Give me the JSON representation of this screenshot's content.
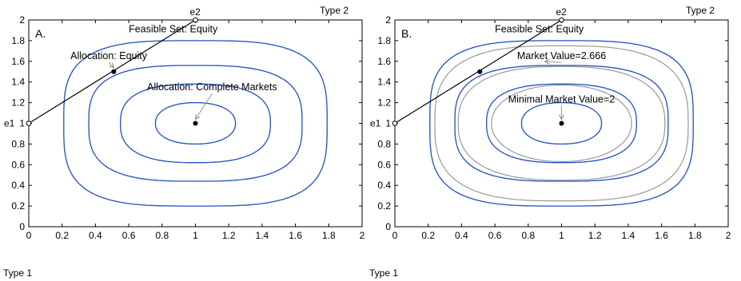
{
  "chart_data": [
    {
      "type": "line",
      "panel_label": "A.",
      "xlabel": "Type 1",
      "ylabel": "Type 2",
      "xlim": [
        0,
        2
      ],
      "ylim": [
        0,
        2
      ],
      "x_ticks": [
        "0",
        "0.2",
        "0.4",
        "0.6",
        "0.8",
        "1",
        "1.2",
        "1.4",
        "1.6",
        "1.8",
        "2"
      ],
      "y_ticks": [
        "0",
        "0.2",
        "0.4",
        "0.6",
        "0.8",
        "1",
        "1.2",
        "1.4",
        "1.6",
        "1.8",
        "2"
      ],
      "grid": false,
      "endowment_labels": [
        "e1",
        "e2"
      ],
      "feasible_set": {
        "label": "Feasible Set: Equity",
        "from": [
          0,
          1
        ],
        "to": [
          1,
          2
        ],
        "color": "#000000"
      },
      "indifference_curves": {
        "color": "#1f4fbf",
        "center": [
          1,
          1
        ],
        "half_widths": [
          0.24,
          0.45,
          0.64,
          0.79
        ],
        "half_heights": [
          0.2,
          0.38,
          0.56,
          0.8
        ],
        "exponents": [
          2.2,
          2.6,
          3.0,
          3.4
        ]
      },
      "points": [
        {
          "name": "allocation-equity",
          "x": 0.51,
          "y": 1.5
        },
        {
          "name": "allocation-complete-markets",
          "x": 1.0,
          "y": 1.0
        }
      ],
      "annotations": [
        {
          "text": "Allocation: Equity",
          "x": 0.51,
          "y": 1.5,
          "text_x": 0.48,
          "text_y": 1.62
        },
        {
          "text": "Allocation: Complete Markets",
          "x": 1.0,
          "y": 1.0,
          "text_x": 1.1,
          "text_y": 1.32
        }
      ]
    },
    {
      "type": "line",
      "panel_label": "B.",
      "xlabel": "Type 1",
      "ylabel": "Type 2",
      "xlim": [
        0,
        2
      ],
      "ylim": [
        0,
        2
      ],
      "x_ticks": [
        "0",
        "0.2",
        "0.4",
        "0.6",
        "0.8",
        "1",
        "1.2",
        "1.4",
        "1.6",
        "1.8",
        "2"
      ],
      "y_ticks": [
        "0",
        "0.2",
        "0.4",
        "0.6",
        "0.8",
        "1",
        "1.2",
        "1.4",
        "1.6",
        "1.8",
        "2"
      ],
      "grid": false,
      "endowment_labels": [
        "e1",
        "e2"
      ],
      "feasible_set": {
        "label": "Feasible Set: Equity",
        "from": [
          0,
          1
        ],
        "to": [
          1,
          2
        ],
        "color": "#000000"
      },
      "indifference_curves": {
        "color": "#1f4fbf",
        "center": [
          1,
          1
        ],
        "half_widths": [
          0.24,
          0.45,
          0.64,
          0.79
        ],
        "half_heights": [
          0.2,
          0.38,
          0.56,
          0.8
        ],
        "exponents": [
          2.2,
          2.6,
          3.0,
          3.4
        ]
      },
      "iso_value_curves": {
        "color": "#999999",
        "center": [
          1,
          1
        ],
        "half_widths": [
          0.42,
          0.62,
          0.76
        ],
        "half_heights": [
          0.37,
          0.55,
          0.75
        ],
        "exponents": [
          2.1,
          2.5,
          2.9
        ]
      },
      "points": [
        {
          "name": "allocation-equity",
          "x": 0.51,
          "y": 1.5
        },
        {
          "name": "minimal-market-value-point",
          "x": 1.0,
          "y": 1.0
        }
      ],
      "annotations": [
        {
          "text": "Market Value=2.666",
          "x": 0.9,
          "y": 1.56,
          "text_x": 1.0,
          "text_y": 1.62
        },
        {
          "text": "Minimal Market Value=2",
          "x": 1.0,
          "y": 1.0,
          "text_x": 1.0,
          "text_y": 1.2
        }
      ]
    }
  ]
}
